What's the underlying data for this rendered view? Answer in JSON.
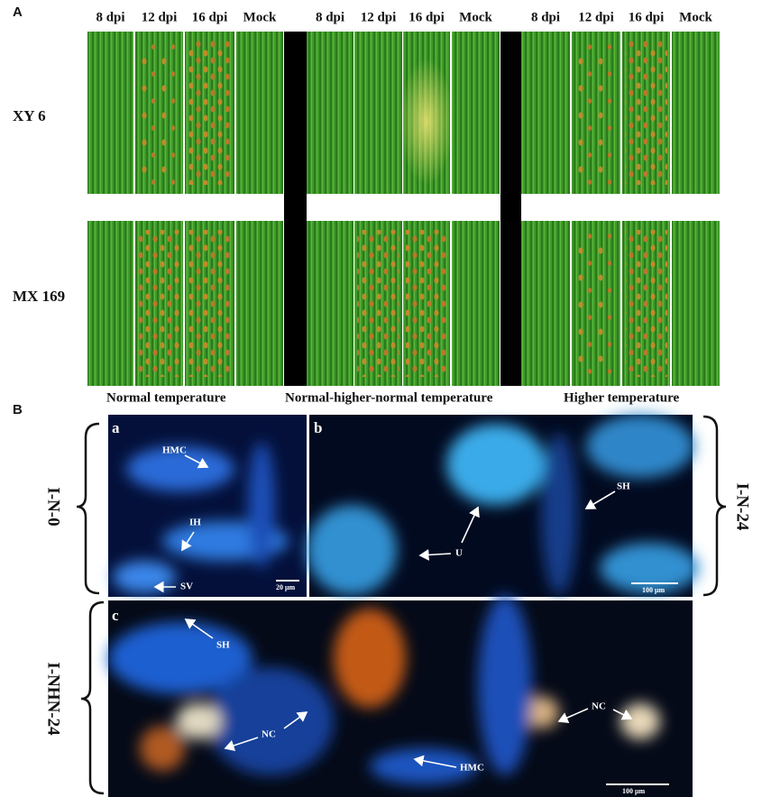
{
  "panel_a": {
    "label": "A",
    "columns": [
      "8 dpi",
      "12 dpi",
      "16 dpi",
      "Mock",
      "8 dpi",
      "12 dpi",
      "16 dpi",
      "Mock",
      "8 dpi",
      "12 dpi",
      "16 dpi",
      "Mock"
    ],
    "rows": [
      "XY 6",
      "MX 169"
    ],
    "conditions": [
      "Normal temperature",
      "Normal-higher-normal temperature",
      "Higher temperature"
    ]
  },
  "panel_b": {
    "label": "B",
    "side_labels": [
      "I-N-0",
      "I-N-24",
      "I-NHN-24"
    ],
    "subpanels": [
      {
        "label": "a",
        "annotations": [
          "HMC",
          "IH",
          "SV"
        ],
        "scale_bar": "20 μm"
      },
      {
        "label": "b",
        "annotations": [
          "U",
          "SH"
        ],
        "scale_bar": "100 μm"
      },
      {
        "label": "c",
        "annotations": [
          "SH",
          "NC",
          "HMC",
          "NC"
        ],
        "scale_bar": "100 μm"
      }
    ]
  }
}
